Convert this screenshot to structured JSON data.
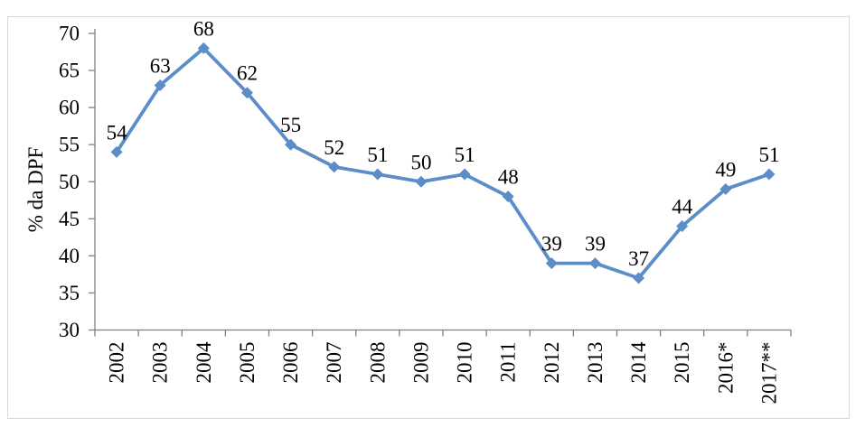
{
  "figure": {
    "background": "#FFFFFF",
    "border_color": "#D9D9D9"
  },
  "chart_data": {
    "type": "line",
    "title": "",
    "xlabel": "",
    "ylabel": "% da DPF",
    "categories": [
      "2002",
      "2003",
      "2004",
      "2005",
      "2006",
      "2007",
      "2008",
      "2009",
      "2010",
      "2011",
      "2012",
      "2013",
      "2014",
      "2015",
      "2016*",
      "2017**"
    ],
    "series": [
      {
        "name": "% da DPF",
        "values": [
          54,
          63,
          68,
          62,
          55,
          52,
          51,
          50,
          51,
          48,
          39,
          39,
          37,
          44,
          49,
          51
        ],
        "data_labels": [
          "54",
          "63",
          "68",
          "62",
          "55",
          "52",
          "51",
          "50",
          "51",
          "48",
          "39",
          "39",
          "37",
          "44",
          "49",
          "51"
        ],
        "color": "#5B8DC9",
        "marker": "diamond"
      }
    ],
    "ylim": [
      30,
      70
    ],
    "yticks": [
      30,
      35,
      40,
      45,
      50,
      55,
      60,
      65,
      70
    ],
    "grid": false,
    "legend_position": "none",
    "axis_color": "#7F7F7F",
    "text_color": "#000000",
    "x_tick_label_rotation": -90
  }
}
